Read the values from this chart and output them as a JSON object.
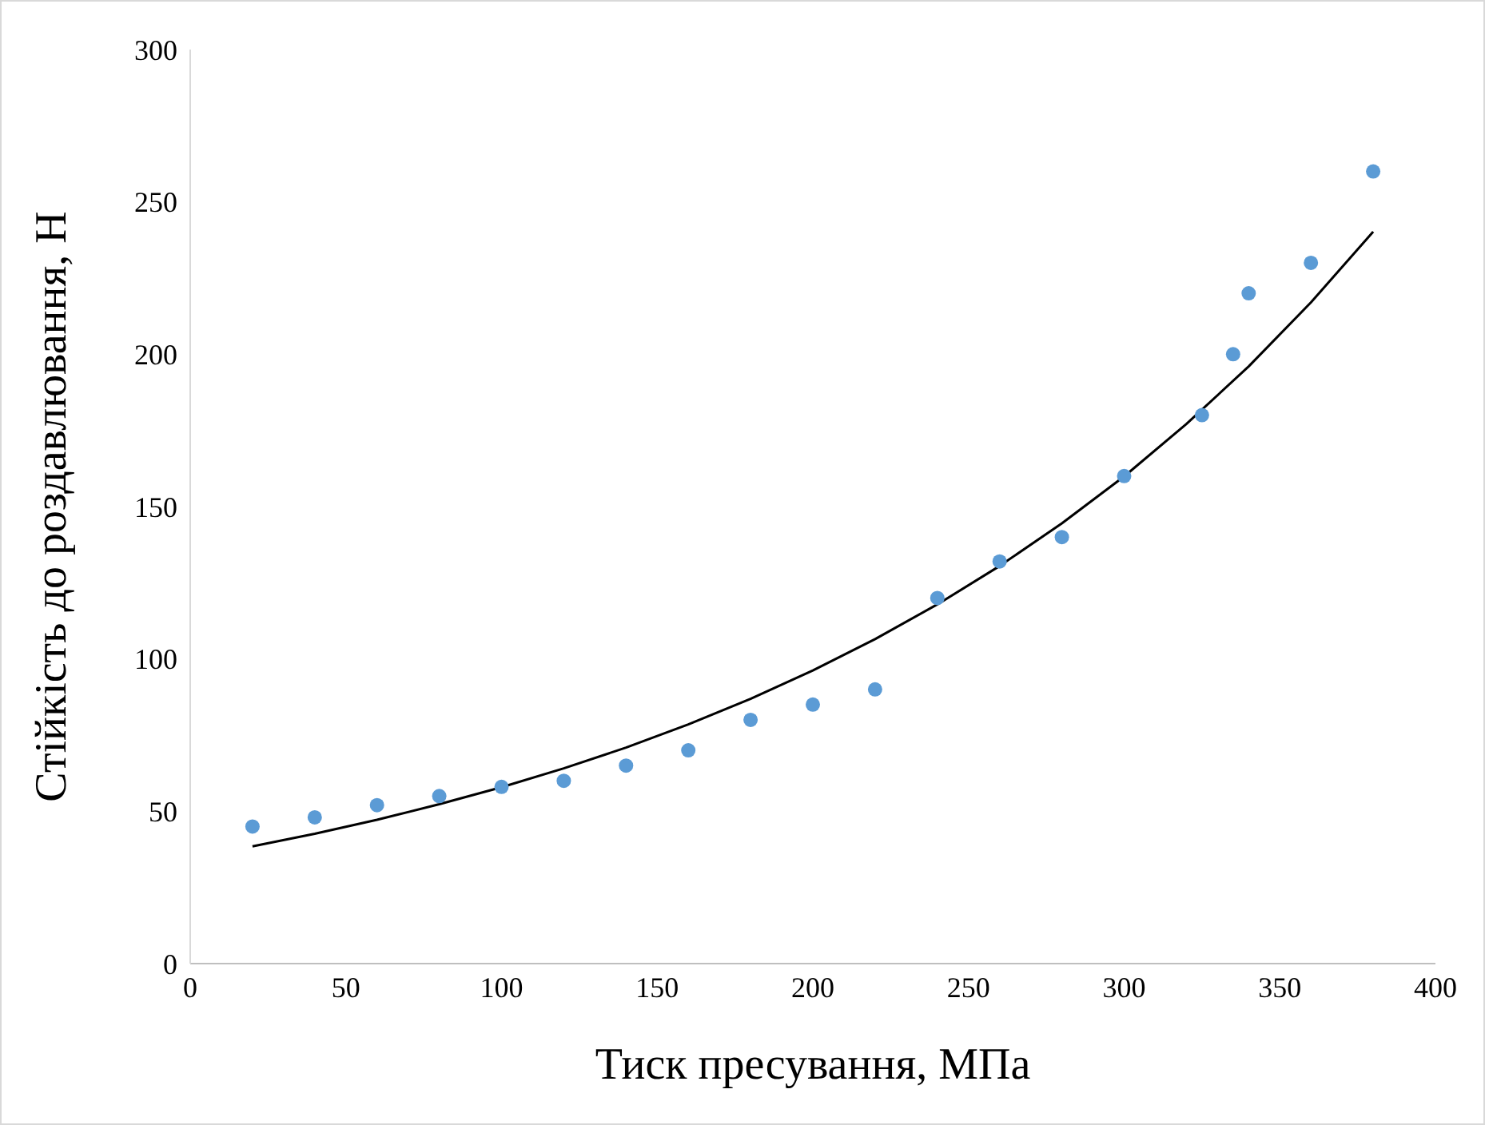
{
  "chart_data": {
    "type": "scatter",
    "xlabel": "Тиск пресування, МПа",
    "ylabel": "Стійкість до роздавлювання, Н",
    "xlim": [
      0,
      400
    ],
    "xticks": [
      0,
      50,
      100,
      150,
      200,
      250,
      300,
      350,
      400
    ],
    "ylim": [
      0,
      300
    ],
    "yticks": [
      0,
      50,
      100,
      150,
      200,
      250,
      300
    ],
    "series": [
      {
        "color": "#5b9bd5",
        "marker": "circle",
        "x": [
          20,
          40,
          60,
          80,
          100,
          120,
          140,
          160,
          180,
          200,
          220,
          240,
          260,
          280,
          300,
          325,
          335,
          340,
          360,
          380
        ],
        "values": [
          45,
          48,
          52,
          55,
          58,
          60,
          65,
          70,
          80,
          85,
          90,
          120,
          132,
          140,
          160,
          180,
          200,
          220,
          230,
          260
        ]
      },
      {
        "type": "line",
        "color": "#000000",
        "marker": "none",
        "line_style": "solid",
        "x": [
          20,
          40,
          60,
          80,
          100,
          120,
          140,
          160,
          180,
          200,
          220,
          240,
          260,
          280,
          300,
          320,
          340,
          360,
          380
        ],
        "values": [
          38.5,
          42.6,
          47.2,
          52.3,
          57.9,
          64.1,
          70.9,
          78.5,
          86.9,
          96.2,
          106.5,
          117.9,
          130.5,
          144.5,
          159.9,
          177.1,
          196.0,
          217.0,
          240.2
        ]
      }
    ]
  }
}
